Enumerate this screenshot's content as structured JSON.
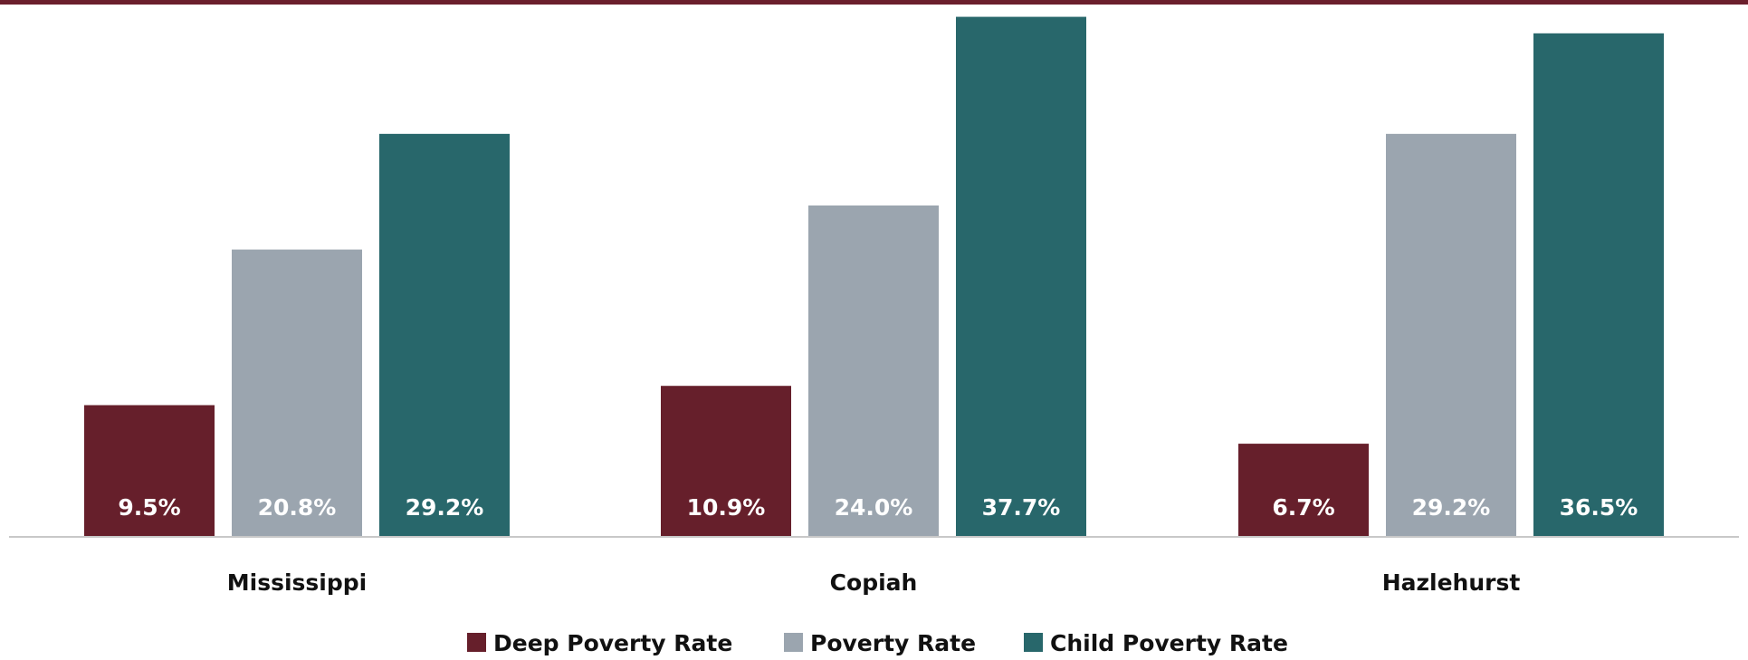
{
  "colors": {
    "top_rule": "#6b1f2c",
    "baseline": "#c8c8c8",
    "deep_poverty": "#661f2b",
    "poverty": "#9ba5af",
    "child_poverty": "#28676b"
  },
  "chart_data": {
    "type": "bar",
    "categories": [
      "Mississippi",
      "Copiah",
      "Hazlehurst"
    ],
    "series": [
      {
        "name": "Deep Poverty Rate",
        "values": [
          9.5,
          10.9,
          6.7
        ],
        "labels": [
          "9.5%",
          "10.9%",
          "6.7%"
        ],
        "color": "#661f2b"
      },
      {
        "name": "Poverty Rate",
        "values": [
          20.8,
          24.0,
          29.2
        ],
        "labels": [
          "20.8%",
          "24.0%",
          "29.2%"
        ],
        "color": "#9ba5af"
      },
      {
        "name": "Child Poverty Rate",
        "values": [
          29.2,
          37.7,
          36.5
        ],
        "labels": [
          "29.2%",
          "37.7%",
          "36.5%"
        ],
        "color": "#28676b"
      }
    ],
    "ylim": [
      0,
      38
    ],
    "grid": false,
    "legend": "bottom-center"
  }
}
